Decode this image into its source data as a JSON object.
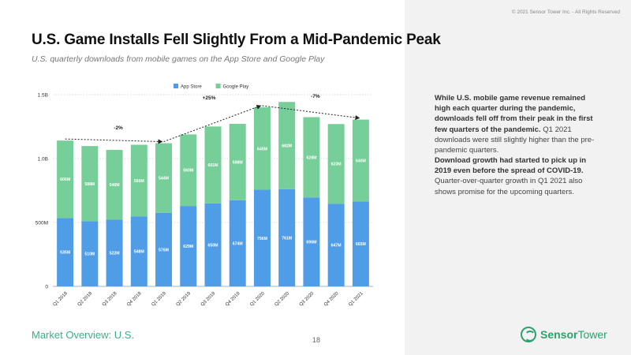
{
  "header": {
    "title": "U.S. Game Installs Fell Slightly From a Mid-Pandemic Peak",
    "subtitle": "U.S. quarterly downloads from mobile games on the App Store and Google Play"
  },
  "copyright": "© 2021 Sensor Tower Inc. - All Rights Reserved",
  "sidebar": {
    "p1_bold": "While U.S. mobile game revenue remained high each quarter during the pandemic, downloads fell off from their peak in the first few quarters of the pandemic.",
    "p1_rest": " Q1 2021 downloads were still slightly higher than the pre-pandemic quarters.",
    "p2_bold": "Download growth had started to pick up in 2019 even before the spread of COVID-19.",
    "p2_rest": " Quarter-over-quarter growth in Q1 2021 also shows promise for the upcoming quarters."
  },
  "footer": {
    "section": "Market Overview: U.S.",
    "page": "18",
    "logo_sensor": "Sensor",
    "logo_tower": "Tower"
  },
  "chart_data": {
    "type": "bar",
    "stacked": true,
    "categories": [
      "Q1 2018",
      "Q2 2018",
      "Q3 2018",
      "Q4 2018",
      "Q1 2019",
      "Q2 2019",
      "Q3 2019",
      "Q4 2019",
      "Q1 2020",
      "Q2 2020",
      "Q3 2020",
      "Q4 2020",
      "Q1 2021"
    ],
    "series": [
      {
        "name": "App Store",
        "color": "#4f9de6",
        "values": [
          535,
          510,
          522,
          548,
          576,
          629,
          650,
          674,
          756,
          761,
          696,
          647,
          665
        ],
        "labels": [
          "535M",
          "510M",
          "522M",
          "548M",
          "576M",
          "629M",
          "650M",
          "674M",
          "756M",
          "761M",
          "696M",
          "647M",
          "665M"
        ]
      },
      {
        "name": "Google Play",
        "color": "#76cf98",
        "values": [
          606,
          588,
          546,
          560,
          544,
          560,
          601,
          598,
          645,
          682,
          628,
          623,
          640
        ],
        "labels": [
          "606M",
          "588M",
          "546M",
          "560M",
          "544M",
          "560M",
          "601M",
          "598M",
          "645M",
          "682M",
          "628M",
          "623M",
          "640M"
        ]
      }
    ],
    "y_ticks": [
      {
        "value": 0,
        "label": "0"
      },
      {
        "value": 500,
        "label": "500M"
      },
      {
        "value": 1000,
        "label": "1.0B"
      },
      {
        "value": 1500,
        "label": "1.5B"
      }
    ],
    "ylim": [
      0,
      1500
    ],
    "legend_position": "top",
    "annotations": [
      {
        "label": "-2%",
        "from": 0,
        "to": 4
      },
      {
        "label": "+25%",
        "from": 4,
        "to": 8
      },
      {
        "label": "-7%",
        "from": 8,
        "to": 12
      }
    ]
  }
}
